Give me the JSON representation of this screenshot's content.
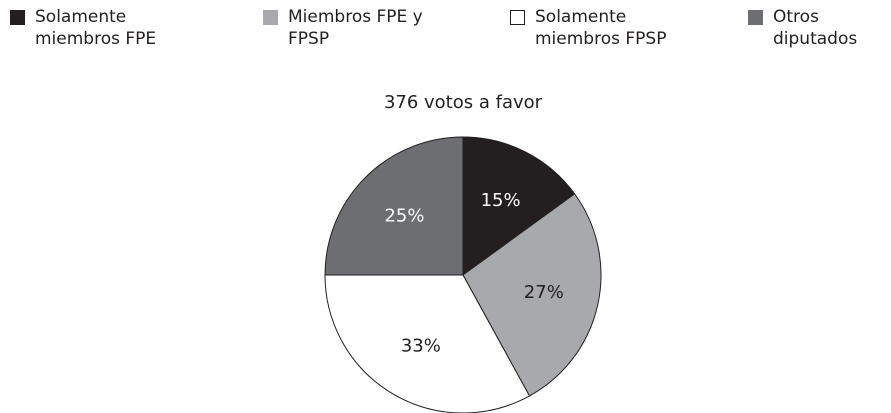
{
  "chart_data": {
    "type": "pie",
    "title": "376 votos a favor",
    "categories": [
      "Solamente miembros FPE",
      "Miembros FPE y FPSP",
      "Solamente miembros FPSP",
      "Otros diputados"
    ],
    "values": [
      15,
      27,
      33,
      25
    ],
    "value_labels": [
      "15%",
      "27%",
      "33%",
      "25%"
    ],
    "colors": [
      "#231f20",
      "#a7a9ac",
      "#ffffff",
      "#6d6e71"
    ]
  }
}
